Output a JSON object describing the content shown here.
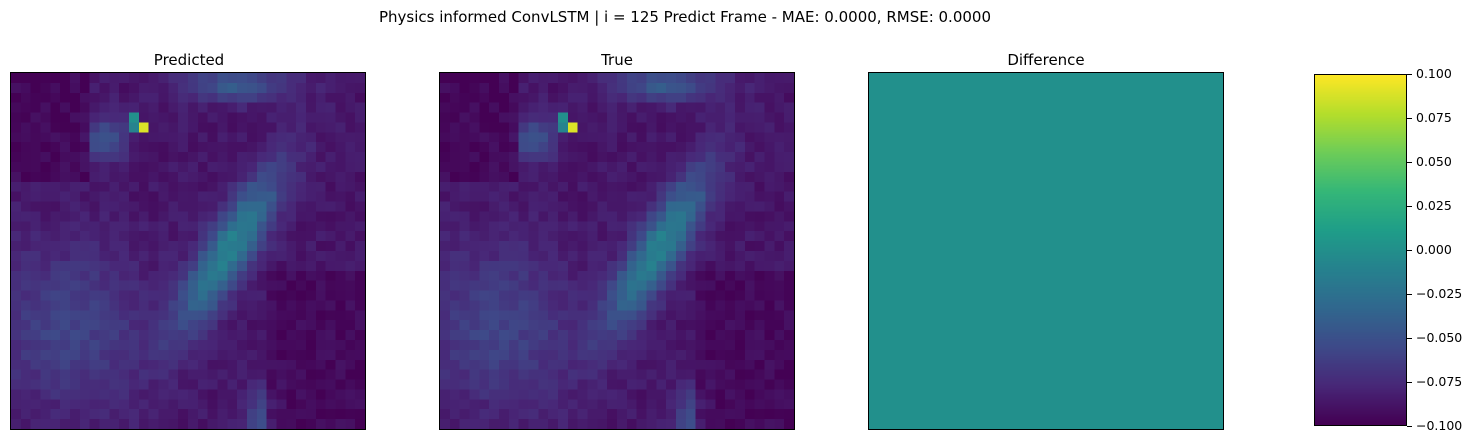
{
  "title": "Physics informed ConvLSTM | i = 125 Predict Frame - MAE: 0.0000, RMSE: 0.0000",
  "chart_data": [
    {
      "type": "heatmap",
      "title": "Predicted",
      "xticks": [],
      "yticks": [],
      "colormap": "viridis",
      "grid_size": [
        36,
        36
      ],
      "description_values": "low-intensity field with a bright NE-SW ridge through center, hotspot near upper-left"
    },
    {
      "type": "heatmap",
      "title": "True",
      "xticks": [],
      "yticks": [],
      "colormap": "viridis",
      "grid_size": [
        36,
        36
      ]
    },
    {
      "type": "heatmap",
      "title": "Difference",
      "xticks": [],
      "yticks": [],
      "colormap": "viridis",
      "uniform_value": 0.0
    }
  ],
  "colorbar": {
    "colormap": "viridis",
    "vmin": -0.1,
    "vmax": 0.1,
    "ticks": [
      "0.100",
      "0.075",
      "0.050",
      "0.025",
      "0.000",
      "−0.025",
      "−0.050",
      "−0.075",
      "−0.100"
    ],
    "tick_values": [
      0.1,
      0.075,
      0.05,
      0.025,
      0.0,
      -0.025,
      -0.05,
      -0.075,
      -0.1
    ]
  }
}
